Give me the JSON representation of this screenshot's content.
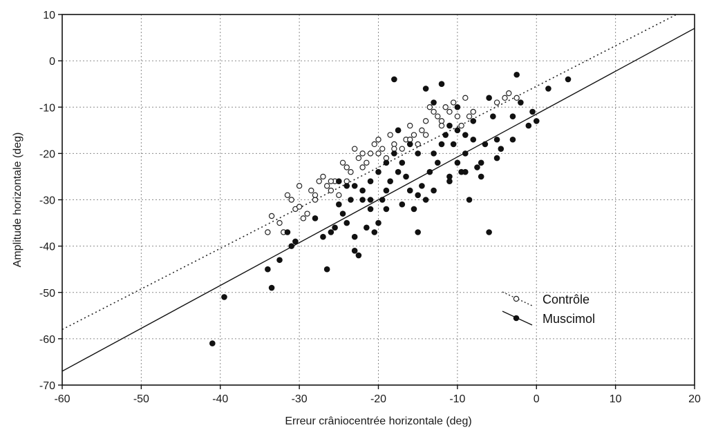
{
  "chart_data": {
    "type": "scatter",
    "title": "",
    "xlabel": "Erreur crâniocentrée horizontale (deg)",
    "ylabel": "Amplitude horizontale (deg)",
    "xlim": [
      -60,
      20
    ],
    "ylim": [
      -70,
      10
    ],
    "x_ticks": [
      -60,
      -50,
      -40,
      -30,
      -20,
      -10,
      0,
      10,
      20
    ],
    "y_ticks": [
      -70,
      -60,
      -50,
      -40,
      -30,
      -20,
      -10,
      0,
      10
    ],
    "x_tick_labels": [
      "-60",
      "-50",
      "-40",
      "-30",
      "-20",
      "-10",
      "0",
      "10",
      "20"
    ],
    "y_tick_labels": [
      "-70",
      "-60",
      "-50",
      "-40",
      "-30",
      "-20",
      "-10",
      "0",
      "10"
    ],
    "grid": true,
    "legend_position": "bottom-right",
    "series": [
      {
        "name": "Contrôle",
        "marker": "open-circle",
        "line_style": "dotted",
        "color": "#222222",
        "regression_line": [
          [
            -60,
            -58
          ],
          [
            20,
            12
          ]
        ],
        "points": [
          [
            -34,
            -37
          ],
          [
            -33.5,
            -33.5
          ],
          [
            -32.5,
            -35
          ],
          [
            -32,
            -37
          ],
          [
            -31.5,
            -29
          ],
          [
            -31,
            -30
          ],
          [
            -30.5,
            -32
          ],
          [
            -30,
            -31.5
          ],
          [
            -29.5,
            -34
          ],
          [
            -29,
            -33
          ],
          [
            -28.5,
            -28
          ],
          [
            -28,
            -30
          ],
          [
            -27.5,
            -26
          ],
          [
            -27,
            -25
          ],
          [
            -26.5,
            -27
          ],
          [
            -26,
            -28
          ],
          [
            -25.5,
            -26
          ],
          [
            -25,
            -29
          ],
          [
            -24.5,
            -22
          ],
          [
            -24,
            -23
          ],
          [
            -23.5,
            -24
          ],
          [
            -23,
            -19
          ],
          [
            -22.5,
            -21
          ],
          [
            -22,
            -20
          ],
          [
            -21.5,
            -22
          ],
          [
            -21,
            -20
          ],
          [
            -20.5,
            -18
          ],
          [
            -20,
            -17
          ],
          [
            -19.5,
            -19
          ],
          [
            -19,
            -21
          ],
          [
            -18.5,
            -16
          ],
          [
            -18,
            -18
          ],
          [
            -17.5,
            -15
          ],
          [
            -17,
            -19
          ],
          [
            -16.5,
            -17
          ],
          [
            -16,
            -14
          ],
          [
            -15.5,
            -16
          ],
          [
            -15,
            -18
          ],
          [
            -14.5,
            -15
          ],
          [
            -14,
            -13
          ],
          [
            -13.5,
            -10
          ],
          [
            -13,
            -11
          ],
          [
            -12.5,
            -12
          ],
          [
            -12,
            -13
          ],
          [
            -11.5,
            -10
          ],
          [
            -11,
            -11
          ],
          [
            -10.5,
            -9
          ],
          [
            -10,
            -12
          ],
          [
            -9.5,
            -14
          ],
          [
            -9,
            -8
          ],
          [
            -8.5,
            -12
          ],
          [
            -8,
            -11
          ],
          [
            -5,
            -9
          ],
          [
            -4,
            -8
          ],
          [
            -3.5,
            -7
          ],
          [
            -2.5,
            -8
          ],
          [
            -30,
            -27
          ],
          [
            -28,
            -29
          ],
          [
            -26,
            -26
          ],
          [
            -24,
            -26
          ],
          [
            -22,
            -23
          ],
          [
            -20,
            -20
          ],
          [
            -18,
            -19
          ],
          [
            -16,
            -17
          ],
          [
            -14,
            -16
          ],
          [
            -12,
            -14
          ]
        ]
      },
      {
        "name": "Muscimol",
        "marker": "filled-circle",
        "line_style": "solid",
        "color": "#111111",
        "regression_line": [
          [
            -60,
            -67
          ],
          [
            20,
            7
          ]
        ],
        "points": [
          [
            -41,
            -61
          ],
          [
            -39.5,
            -51
          ],
          [
            -34,
            -45
          ],
          [
            -33.5,
            -49
          ],
          [
            -32.5,
            -43
          ],
          [
            -31.5,
            -37
          ],
          [
            -31,
            -40
          ],
          [
            -30.5,
            -39
          ],
          [
            -28,
            -34
          ],
          [
            -27,
            -38
          ],
          [
            -26.5,
            -45
          ],
          [
            -26,
            -37
          ],
          [
            -25.5,
            -36
          ],
          [
            -25,
            -31
          ],
          [
            -24.5,
            -33
          ],
          [
            -24,
            -35
          ],
          [
            -23.5,
            -30
          ],
          [
            -23,
            -41
          ],
          [
            -23,
            -38
          ],
          [
            -22.5,
            -42
          ],
          [
            -22,
            -30
          ],
          [
            -21.5,
            -36
          ],
          [
            -21,
            -32
          ],
          [
            -20.5,
            -37
          ],
          [
            -20,
            -35
          ],
          [
            -19.5,
            -30
          ],
          [
            -19,
            -28
          ],
          [
            -18.5,
            -26
          ],
          [
            -18,
            -4
          ],
          [
            -17.5,
            -24
          ],
          [
            -17,
            -22
          ],
          [
            -16.5,
            -25
          ],
          [
            -16,
            -28
          ],
          [
            -15.5,
            -32
          ],
          [
            -15,
            -37
          ],
          [
            -14.5,
            -27
          ],
          [
            -14,
            -30
          ],
          [
            -13.5,
            -24
          ],
          [
            -13,
            -20
          ],
          [
            -12.5,
            -22
          ],
          [
            -12,
            -5
          ],
          [
            -11.5,
            -16
          ],
          [
            -11,
            -26
          ],
          [
            -10.5,
            -18
          ],
          [
            -10,
            -22
          ],
          [
            -9.5,
            -24
          ],
          [
            -9,
            -20
          ],
          [
            -8.5,
            -30
          ],
          [
            -8,
            -17
          ],
          [
            -7.5,
            -23
          ],
          [
            -7,
            -25
          ],
          [
            -6.5,
            -18
          ],
          [
            -6,
            -37
          ],
          [
            -5.5,
            -12
          ],
          [
            -5,
            -17
          ],
          [
            -4.5,
            -19
          ],
          [
            -3,
            -17
          ],
          [
            -2.5,
            -3
          ],
          [
            -2,
            -9
          ],
          [
            -1,
            -14
          ],
          [
            -0.5,
            -11
          ],
          [
            0,
            -13
          ],
          [
            1.5,
            -6
          ],
          [
            4,
            -4
          ],
          [
            -14,
            -6
          ],
          [
            -13,
            -9
          ],
          [
            -12,
            -18
          ],
          [
            -11,
            -14
          ],
          [
            -10,
            -15
          ],
          [
            -9,
            -16
          ],
          [
            -15,
            -20
          ],
          [
            -16,
            -18
          ],
          [
            -17.5,
            -15
          ],
          [
            -18,
            -20
          ],
          [
            -19,
            -22
          ],
          [
            -20,
            -24
          ],
          [
            -21,
            -26
          ],
          [
            -22,
            -28
          ],
          [
            -24,
            -27
          ],
          [
            -25,
            -26
          ],
          [
            -23,
            -27
          ],
          [
            -21,
            -30
          ],
          [
            -19,
            -32
          ],
          [
            -17,
            -31
          ],
          [
            -15,
            -29
          ],
          [
            -13,
            -28
          ],
          [
            -11,
            -25
          ],
          [
            -9,
            -24
          ],
          [
            -7,
            -22
          ],
          [
            -5,
            -21
          ],
          [
            -6,
            -8
          ],
          [
            -3,
            -12
          ],
          [
            -8,
            -13
          ],
          [
            -10,
            -10
          ]
        ]
      }
    ]
  }
}
